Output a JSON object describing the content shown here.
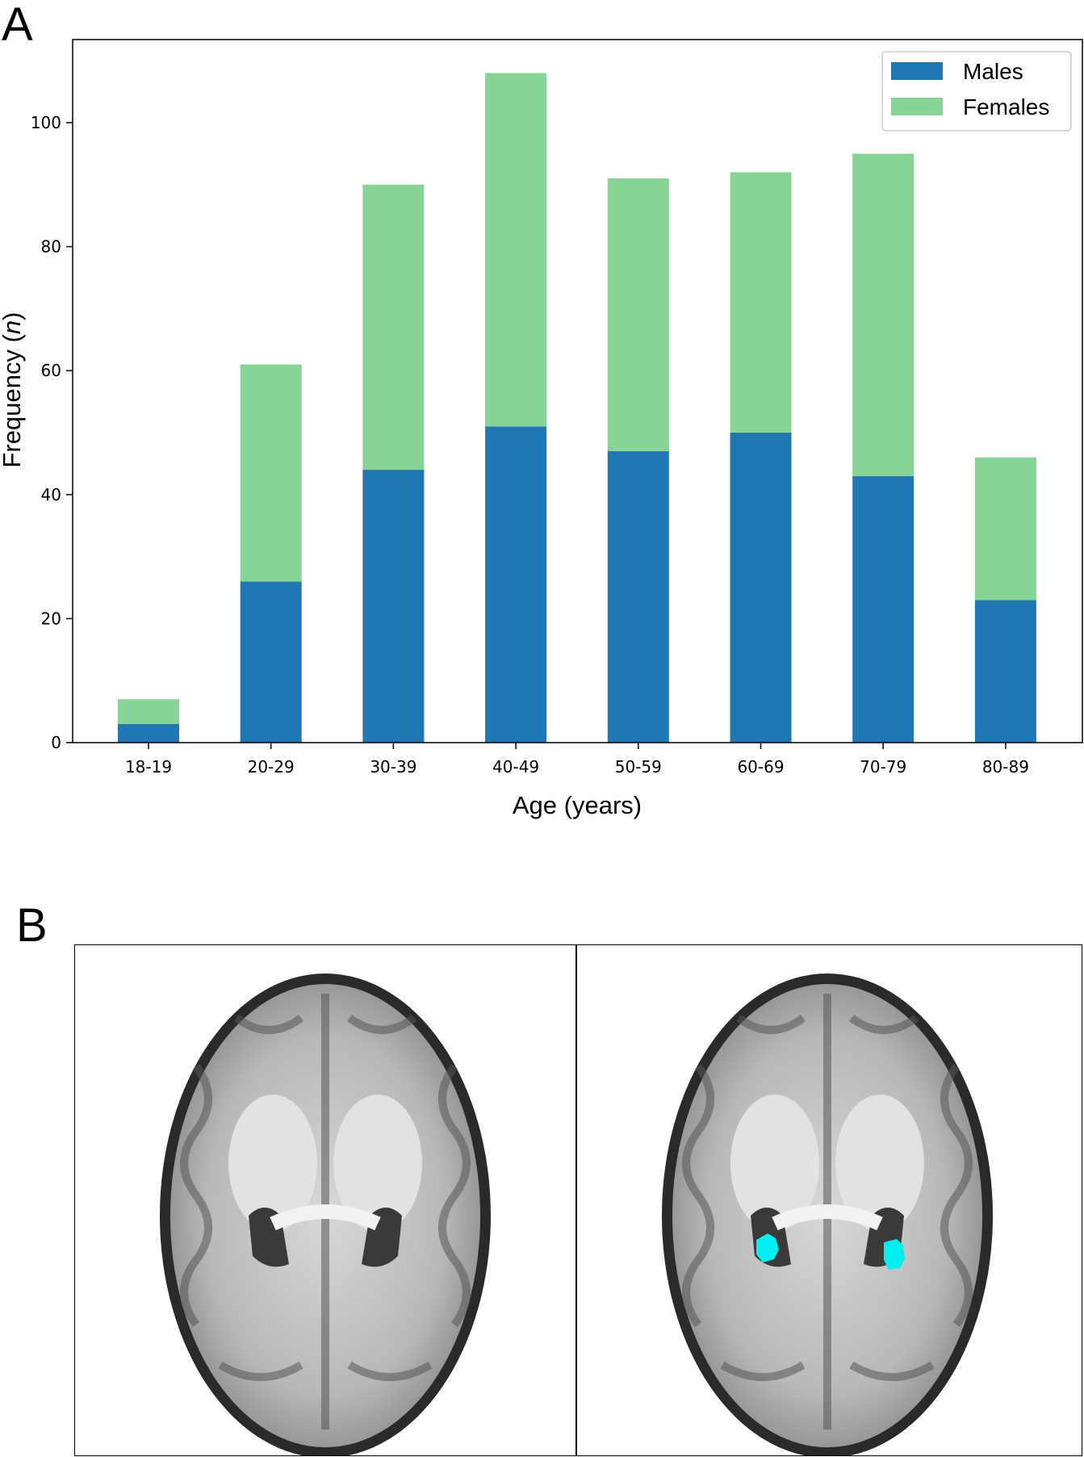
{
  "panels": {
    "a_label": "A",
    "b_label": "B"
  },
  "chart_data": {
    "type": "bar",
    "stacked": true,
    "categories": [
      "18-19",
      "20-29",
      "30-39",
      "40-49",
      "50-59",
      "60-69",
      "70-79",
      "80-89"
    ],
    "series": [
      {
        "name": "Males",
        "values": [
          3,
          26,
          44,
          51,
          47,
          50,
          43,
          23
        ],
        "color": "#1f77b4"
      },
      {
        "name": "Females",
        "values": [
          4,
          35,
          46,
          57,
          44,
          42,
          52,
          23
        ],
        "color": "#88d494"
      }
    ],
    "xlabel": "Age (years)",
    "ylabel_prefix": "Frequency (",
    "ylabel_var": "n",
    "ylabel_suffix": ")",
    "ylim": [
      0,
      113.4
    ],
    "yticks": [
      0,
      20,
      40,
      60,
      80,
      100
    ],
    "legend": "top-right",
    "grid": false
  },
  "panel_b": {
    "left_image": "axial T1 brain MRI slice",
    "right_image": "axial T1 brain MRI slice with segmentation overlay",
    "overlay_color": "#00f0f0"
  }
}
